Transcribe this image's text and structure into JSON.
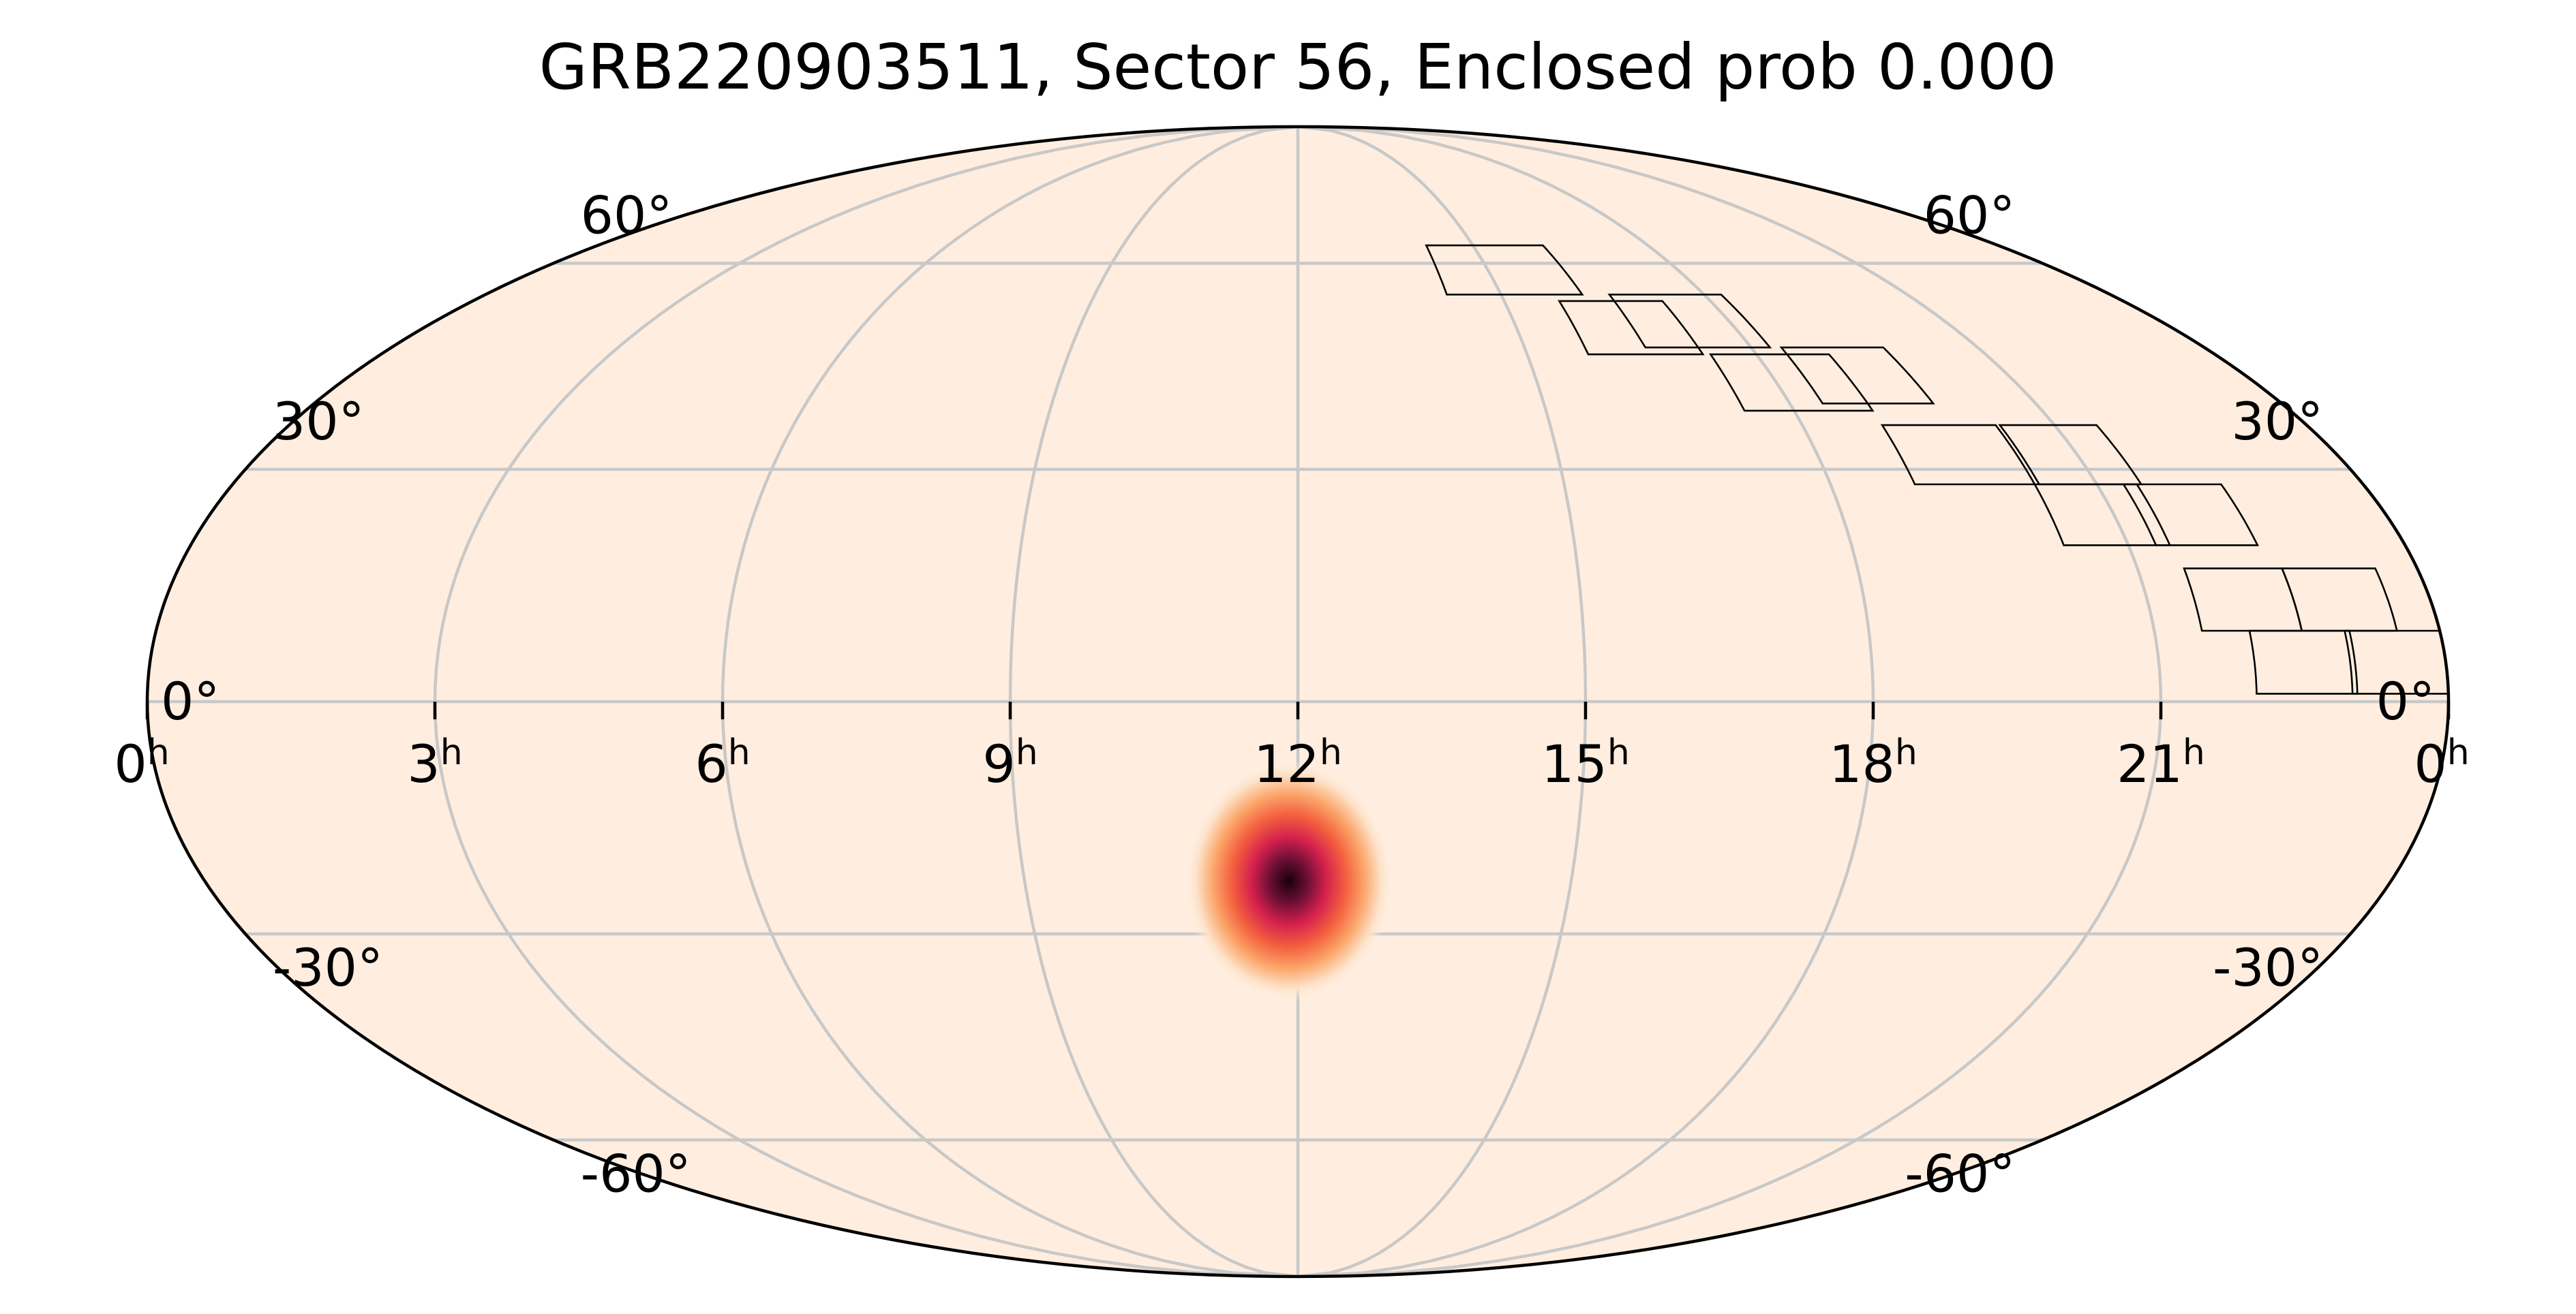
{
  "chart_data": {
    "type": "heatmap",
    "projection": "mollweide",
    "title": "GRB220903511, Sector 56, Enclosed prob 0.000",
    "grid": true,
    "background_color": "#ffeee0",
    "colormap": [
      "#ffeee0",
      "#fde0c5",
      "#fbb07a",
      "#f36b42",
      "#e0264e",
      "#a11850",
      "#4a0a2a",
      "#1a0008"
    ],
    "ra_ticks": [
      {
        "ra_h": 24,
        "label": "0",
        "sup": "h"
      },
      {
        "ra_h": 21,
        "label": "21",
        "sup": "h"
      },
      {
        "ra_h": 18,
        "label": "18",
        "sup": "h"
      },
      {
        "ra_h": 15,
        "label": "15",
        "sup": "h"
      },
      {
        "ra_h": 12,
        "label": "12",
        "sup": "h"
      },
      {
        "ra_h": 9,
        "label": "9",
        "sup": "h"
      },
      {
        "ra_h": 6,
        "label": "6",
        "sup": "h"
      },
      {
        "ra_h": 3,
        "label": "3",
        "sup": "h"
      },
      {
        "ra_h": 0,
        "label": "0",
        "sup": "h"
      }
    ],
    "dec_ticks": [
      {
        "dec": 60,
        "label": "60°"
      },
      {
        "dec": 30,
        "label": "30°"
      },
      {
        "dec": 0,
        "label": "0°"
      },
      {
        "dec": -30,
        "label": "-30°"
      },
      {
        "dec": -60,
        "label": "-60°"
      }
    ],
    "probability_peak": {
      "ra_h": 11.9,
      "dec": -23,
      "sigma_ra_deg": 4,
      "sigma_dec_deg": 5
    },
    "sector_tiles": [
      {
        "ra_h_range": [
          23.0,
          24.0
        ],
        "dec_range": [
          1,
          9
        ]
      },
      {
        "ra_h_range": [
          22.55,
          23.55
        ],
        "dec_range": [
          9,
          17
        ]
      },
      {
        "ra_h_range": [
          22.0,
          23.05
        ],
        "dec_range": [
          1,
          9
        ]
      },
      {
        "ra_h_range": [
          21.5,
          22.55
        ],
        "dec_range": [
          9,
          17
        ]
      },
      {
        "ra_h_range": [
          21.3,
          22.4
        ],
        "dec_range": [
          20,
          28
        ]
      },
      {
        "ra_h_range": [
          20.35,
          21.5
        ],
        "dec_range": [
          28,
          36
        ]
      },
      {
        "ra_h_range": [
          20.3,
          21.45
        ],
        "dec_range": [
          20,
          28
        ]
      },
      {
        "ra_h_range": [
          18.95,
          20.3
        ],
        "dec_range": [
          28,
          36
        ]
      },
      {
        "ra_h_range": [
          18.4,
          19.75
        ],
        "dec_range": [
          39,
          47
        ]
      },
      {
        "ra_h_range": [
          16.6,
          18.25
        ],
        "dec_range": [
          47,
          55
        ]
      },
      {
        "ra_h_range": [
          17.4,
          18.95
        ],
        "dec_range": [
          38,
          46
        ]
      },
      {
        "ra_h_range": [
          15.8,
          17.3
        ],
        "dec_range": [
          46,
          54
        ]
      },
      {
        "ra_h_range": [
          14.2,
          16.2
        ],
        "dec_range": [
          55,
          63
        ]
      }
    ]
  }
}
